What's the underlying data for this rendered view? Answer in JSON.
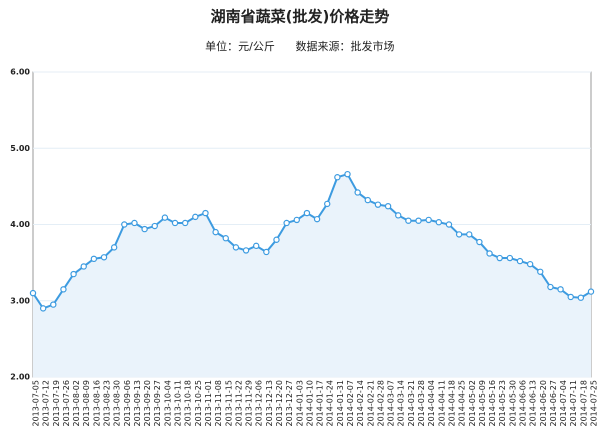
{
  "chart_data": {
    "type": "line",
    "title": "湖南省蔬菜(批发)价格走势",
    "subtitle": [
      "单位：元/公斤",
      "数据来源：批发市场"
    ],
    "categories": [
      "2013-07-05",
      "2013-07-12",
      "2013-07-19",
      "2013-07-26",
      "2013-08-02",
      "2013-08-09",
      "2013-08-16",
      "2013-08-23",
      "2013-08-30",
      "2013-09-06",
      "2013-09-13",
      "2013-09-20",
      "2013-09-27",
      "2013-10-04",
      "2013-10-11",
      "2013-10-18",
      "2013-10-25",
      "2013-11-01",
      "2013-11-08",
      "2013-11-15",
      "2013-11-22",
      "2013-11-29",
      "2013-12-06",
      "2013-12-13",
      "2013-12-20",
      "2013-12-27",
      "2014-01-03",
      "2014-01-10",
      "2014-01-17",
      "2014-01-24",
      "2014-01-31",
      "2014-02-07",
      "2014-02-14",
      "2014-02-21",
      "2014-02-28",
      "2014-03-07",
      "2014-03-14",
      "2014-03-21",
      "2014-03-28",
      "2014-04-04",
      "2014-04-11",
      "2014-04-18",
      "2014-04-25",
      "2014-05-02",
      "2014-05-09",
      "2014-05-16",
      "2014-05-23",
      "2014-05-30",
      "2014-06-06",
      "2014-06-13",
      "2014-06-20",
      "2014-06-27",
      "2014-07-04",
      "2014-07-11",
      "2014-07-18",
      "2014-07-25"
    ],
    "values": [
      3.1,
      2.9,
      2.95,
      3.15,
      3.35,
      3.45,
      3.55,
      3.57,
      3.7,
      4.0,
      4.02,
      3.94,
      3.98,
      4.09,
      4.02,
      4.02,
      4.1,
      4.15,
      3.9,
      3.82,
      3.7,
      3.66,
      3.72,
      3.64,
      3.8,
      4.02,
      4.06,
      4.15,
      4.07,
      4.27,
      4.62,
      4.66,
      4.42,
      4.32,
      4.26,
      4.24,
      4.12,
      4.05,
      4.05,
      4.06,
      4.03,
      4.0,
      3.87,
      3.87,
      3.77,
      3.62,
      3.56,
      3.56,
      3.52,
      3.48,
      3.38,
      3.18,
      3.15,
      3.05,
      3.04,
      3.12
    ],
    "color": "#3d9be0",
    "ylim": [
      2,
      6
    ],
    "yticks": [
      {
        "value": 2,
        "label": "2.00"
      },
      {
        "value": 3,
        "label": "3.00"
      },
      {
        "value": 4,
        "label": "4.00"
      },
      {
        "value": 5,
        "label": "5.00"
      },
      {
        "value": 6,
        "label": "6.00"
      }
    ],
    "grid": true
  }
}
